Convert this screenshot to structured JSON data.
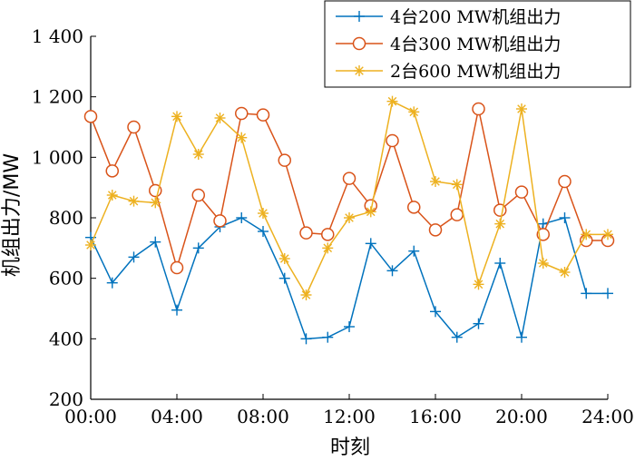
{
  "chart_data": {
    "type": "line",
    "xlabel": "时刻",
    "ylabel": "机组出力/MW",
    "xlim": [
      0,
      24
    ],
    "ylim": [
      200,
      1400
    ],
    "x_ticks": [
      "00:00",
      "04:00",
      "08:00",
      "12:00",
      "16:00",
      "20:00",
      "24:00"
    ],
    "y_ticks": [
      "200",
      "400",
      "600",
      "800",
      "1 000",
      "1 200",
      "1 400"
    ],
    "grid": false,
    "legend_position": "top-right",
    "x": [
      0,
      1,
      2,
      3,
      4,
      5,
      6,
      7,
      8,
      9,
      10,
      11,
      12,
      13,
      14,
      15,
      16,
      17,
      18,
      19,
      20,
      21,
      22,
      23,
      24
    ],
    "series": [
      {
        "name": "4台200 MW机组出力",
        "color": "#0072BD",
        "marker": "plus",
        "values": [
          735,
          585,
          670,
          720,
          495,
          700,
          770,
          800,
          755,
          600,
          400,
          405,
          440,
          715,
          625,
          690,
          490,
          405,
          450,
          650,
          405,
          780,
          800,
          550,
          550
        ]
      },
      {
        "name": "4台300 MW机组出力",
        "color": "#D95319",
        "marker": "circle",
        "values": [
          1135,
          955,
          1100,
          890,
          635,
          875,
          790,
          1145,
          1140,
          990,
          750,
          745,
          930,
          840,
          1055,
          835,
          760,
          810,
          1160,
          825,
          885,
          745,
          920,
          725,
          725
        ]
      },
      {
        "name": "2台600 MW机组出力",
        "color": "#EDB120",
        "marker": "asterisk",
        "values": [
          710,
          875,
          855,
          850,
          1135,
          1010,
          1130,
          1065,
          815,
          665,
          545,
          700,
          800,
          820,
          1185,
          1150,
          920,
          910,
          580,
          780,
          1160,
          650,
          620,
          745,
          745
        ]
      }
    ]
  }
}
